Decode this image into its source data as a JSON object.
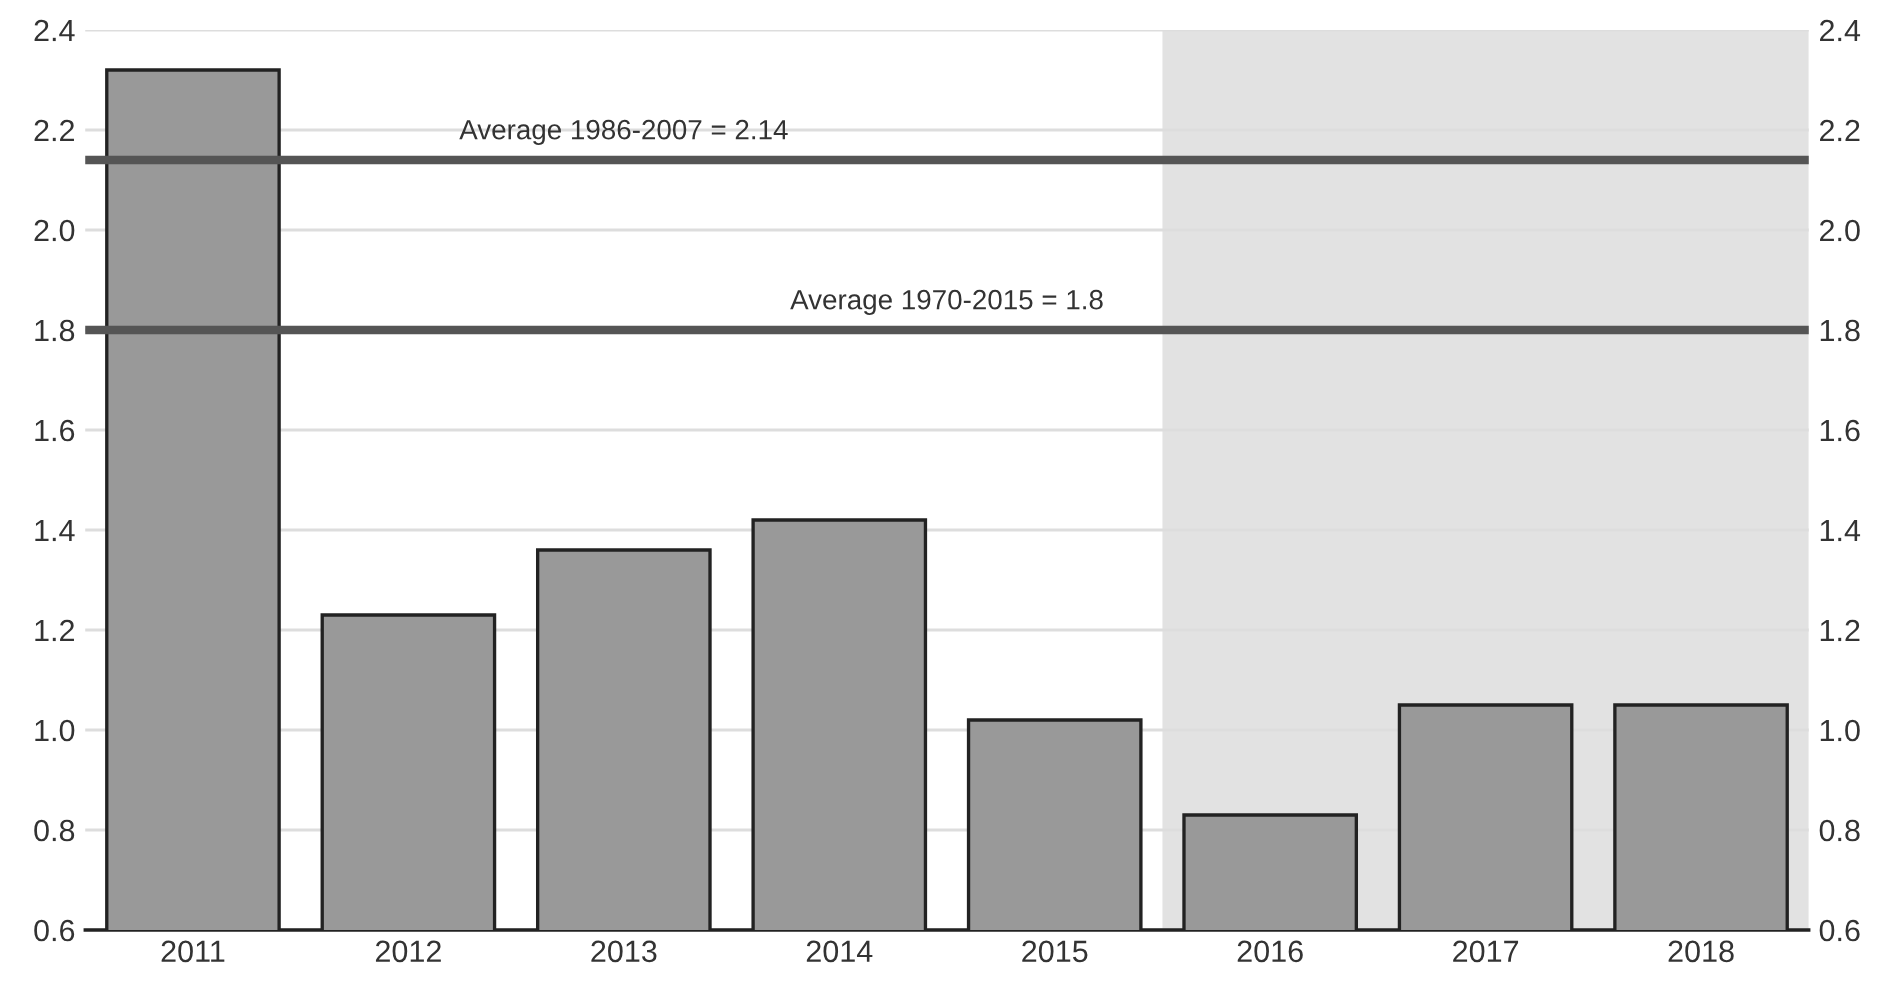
{
  "chart_data": {
    "type": "bar",
    "categories": [
      "2011",
      "2012",
      "2013",
      "2014",
      "2015",
      "2016",
      "2017",
      "2018"
    ],
    "values": [
      2.32,
      1.23,
      1.36,
      1.42,
      1.02,
      0.83,
      1.05,
      1.05
    ],
    "color": "#999999",
    "ylim": [
      0.6,
      2.4
    ],
    "yticks": [
      {
        "value": 0.6,
        "label": "0.6"
      },
      {
        "value": 0.8,
        "label": "0.8"
      },
      {
        "value": 1.0,
        "label": "1.0"
      },
      {
        "value": 1.2,
        "label": "1.2"
      },
      {
        "value": 1.4,
        "label": "1.4"
      },
      {
        "value": 1.6,
        "label": "1.6"
      },
      {
        "value": 1.8,
        "label": "1.8"
      },
      {
        "value": 2.0,
        "label": "2.0"
      },
      {
        "value": 2.2,
        "label": "2.2"
      },
      {
        "value": 2.4,
        "label": "2.4"
      }
    ],
    "y2lim": [
      0.6,
      2.4
    ],
    "y2ticks": [
      {
        "value": 0.6,
        "label": "0.6"
      },
      {
        "value": 0.8,
        "label": "0.8"
      },
      {
        "value": 1.0,
        "label": "1.0"
      },
      {
        "value": 1.2,
        "label": "1.2"
      },
      {
        "value": 1.4,
        "label": "1.4"
      },
      {
        "value": 1.6,
        "label": "1.6"
      },
      {
        "value": 1.8,
        "label": "1.8"
      },
      {
        "value": 2.0,
        "label": "2.0"
      },
      {
        "value": 2.2,
        "label": "2.2"
      },
      {
        "value": 2.4,
        "label": "2.4"
      }
    ],
    "ref_lines": [
      {
        "axis": "y",
        "value": 2.14,
        "label": "Average 1986-2007 = 2.14",
        "color": "#555555"
      },
      {
        "axis": "y",
        "value": 1.8,
        "label": "Average 1970-2015 = 1.8",
        "color": "#555555"
      }
    ],
    "bands": [
      {
        "axis": "x",
        "from": "2016",
        "to": "2018",
        "color": "#e2e2e2"
      }
    ],
    "grid": "y"
  }
}
